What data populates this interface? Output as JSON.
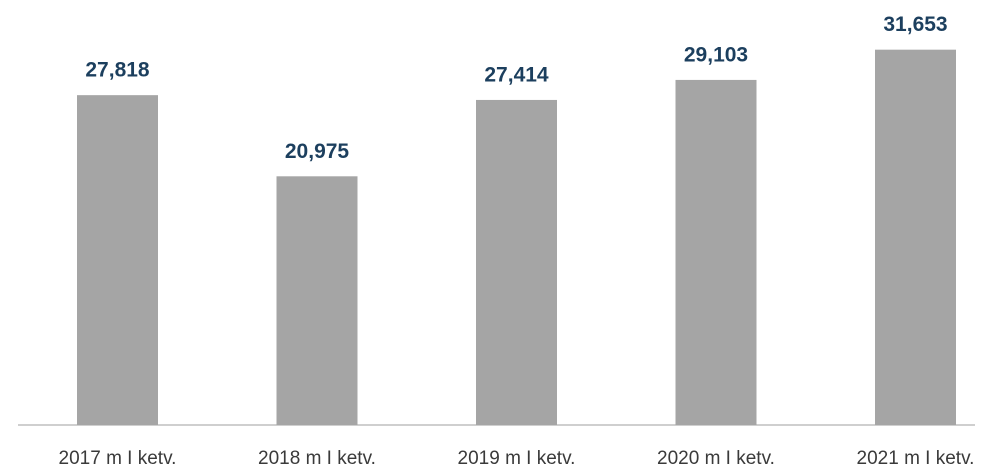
{
  "chart_data": {
    "type": "bar",
    "categories": [
      "2017 m I ketv.",
      "2018 m I ketv.",
      "2019 m I ketv.",
      "2020 m I ketv.",
      "2021 m I ketv."
    ],
    "values": [
      27818,
      20975,
      27414,
      29103,
      31653
    ],
    "value_labels": [
      "27,818",
      "20,975",
      "27,414",
      "29,103",
      "31,653"
    ],
    "color": "#a5a5a5",
    "label_color": "#1c3f5e",
    "ylim": [
      0,
      35000
    ]
  }
}
